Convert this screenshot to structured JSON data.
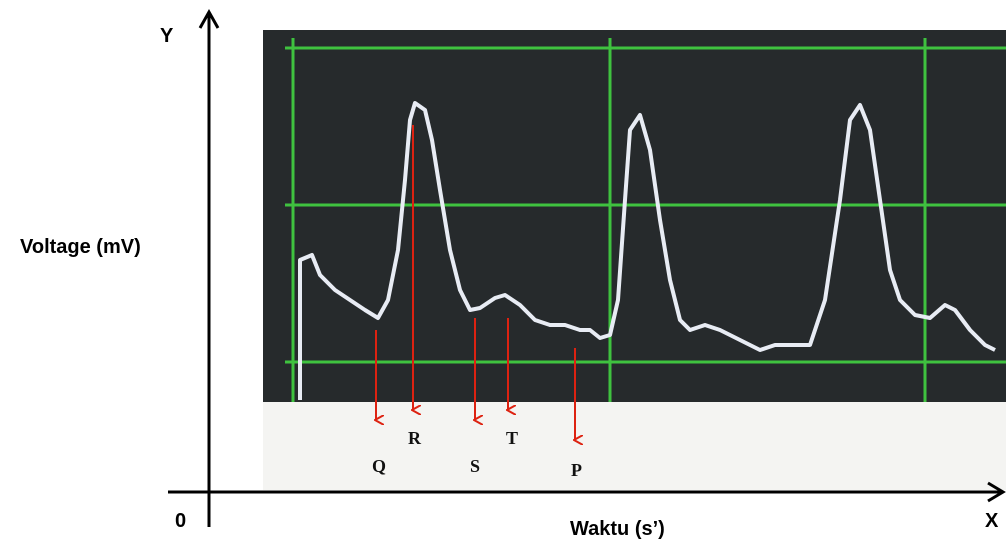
{
  "axis": {
    "y_label": "Y",
    "y_title": "Voltage (mV)",
    "origin": "0",
    "x_label": "X",
    "x_title": "Waktu (s’)"
  },
  "annotations": [
    "Q",
    "R",
    "S",
    "T",
    "P"
  ]
}
